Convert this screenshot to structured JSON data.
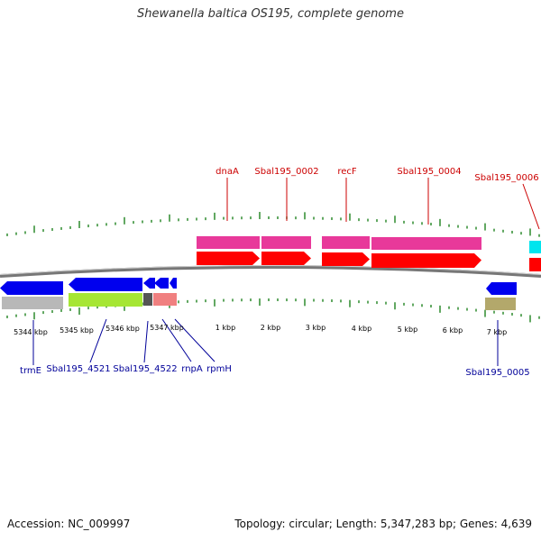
{
  "title": "Shewanella baltica OS195, complete genome",
  "footer": {
    "accession": "Accession: NC_009997",
    "summary": "Topology: circular; Length: 5,347,283 bp; Genes: 4,639"
  },
  "colors": {
    "backbone": "#808080",
    "tick": "#2e8b2e",
    "forward_label": "#cc0000",
    "reverse_label": "#000099",
    "cds_forward": "#ff0000",
    "gene_forward": "#e8399a",
    "cds_reverse": "#0000ee",
    "gene_reverse": "#b8b8b8",
    "rRNA_like": "#a6e634",
    "misc_dark": "#555555",
    "misc_pink": "#f08080",
    "misc_olive": "#b3a86b",
    "cyan": "#00e5ee"
  },
  "forward_labels": [
    "dnaA",
    "Sbal195_0002",
    "recF",
    "Sbal195_0004",
    "Sbal195_0006"
  ],
  "reverse_labels": [
    "trmE",
    "Sbal195_4521",
    "Sbal195_4522",
    "rnpA",
    "rpmH",
    "Sbal195_0005"
  ],
  "scale_labels": [
    "5344 kbp",
    "5345 kbp",
    "5346 kbp",
    "5347 kbp",
    "1 kbp",
    "2 kbp",
    "3 kbp",
    "4 kbp",
    "5 kbp",
    "6 kbp",
    "7 kbp"
  ]
}
